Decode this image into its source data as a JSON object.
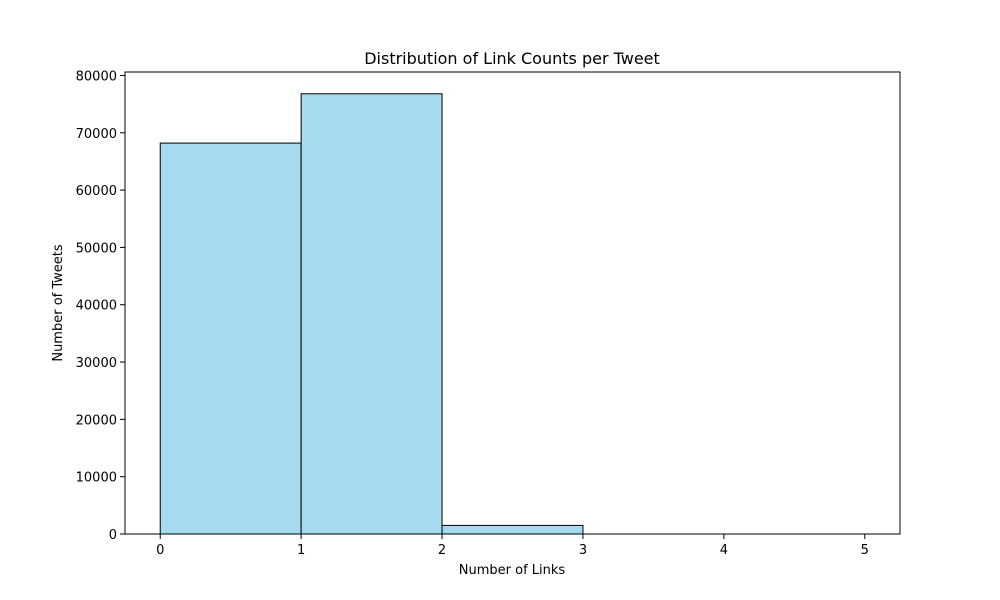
{
  "chart_data": {
    "type": "bar",
    "title": "Distribution of Link Counts per Tweet",
    "xlabel": "Number of Links",
    "ylabel": "Number of Tweets",
    "bins": [
      {
        "start": 0,
        "end": 1,
        "value": 68200
      },
      {
        "start": 1,
        "end": 2,
        "value": 76800
      },
      {
        "start": 2,
        "end": 3,
        "value": 1500
      },
      {
        "start": 3,
        "end": 4,
        "value": 0
      },
      {
        "start": 4,
        "end": 5,
        "value": 0
      }
    ],
    "xticks": [
      "0",
      "1",
      "2",
      "3",
      "4",
      "5"
    ],
    "yticks": [
      "0",
      "10000",
      "20000",
      "30000",
      "40000",
      "50000",
      "60000",
      "70000",
      "80000"
    ],
    "xlim": [
      -0.25,
      5.25
    ],
    "ylim": [
      0,
      80600
    ],
    "grid": false,
    "colors": {
      "bar_fill": "#a6dbef",
      "bar_edge": "#000000",
      "axis": "#000000"
    }
  }
}
